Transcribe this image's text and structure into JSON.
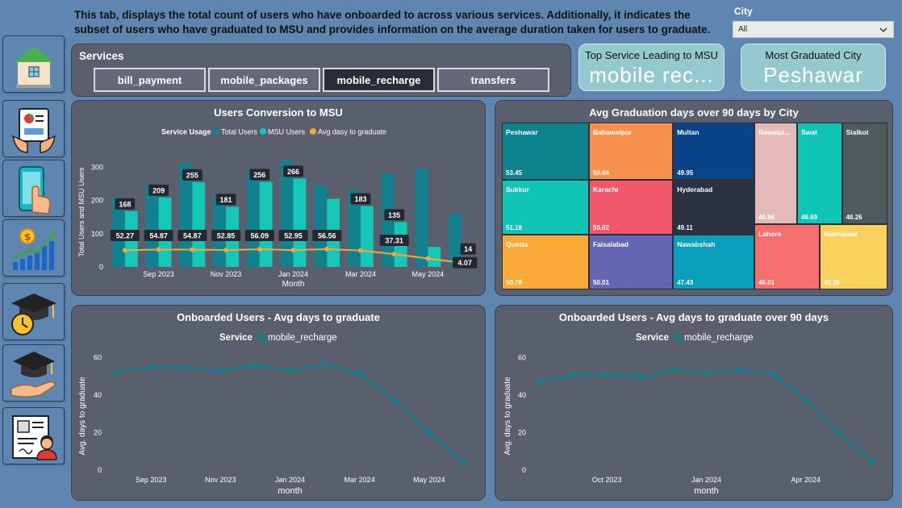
{
  "description": "This tab, displays the total count of users who have onboarded to across various services. Additionally, it indicates the subset of users who have graduated to MSU and provides information on the average duration taken for users to graduate.",
  "city_filter": {
    "label": "City",
    "value": "All"
  },
  "services": {
    "title": "Services",
    "buttons": [
      "bill_payment",
      "mobile_packages",
      "mobile_recharge",
      "transfers"
    ],
    "selected": "mobile_recharge"
  },
  "cards": {
    "top_service": {
      "title": "Top Service Leading to MSU",
      "value": "mobile rec..."
    },
    "top_city": {
      "title": "Most Graduated City",
      "value": "Peshawar"
    }
  },
  "nav_icons": [
    "home-icon",
    "report-icon",
    "mobile-tap-icon",
    "growth-icon",
    "graduation-time-icon",
    "graduation-hand-icon",
    "profile-card-icon"
  ],
  "colors": {
    "total_users": "#11818f",
    "msu_users": "#16c7b7",
    "avg_days": "#f2a838",
    "line_series": "#11808f"
  },
  "chart_data": [
    {
      "type": "bar",
      "title": "Users Conversion to MSU",
      "legend_title": "Service Usage",
      "legend_position": "top-center",
      "xlabel": "Month",
      "ylabel": "Total Users and MSU Users",
      "x_tick_labels": [
        "Sep 2023",
        "Nov 2023",
        "Jan 2024",
        "Mar 2024",
        "May 2024"
      ],
      "y_ticks": [
        0,
        100,
        200,
        300
      ],
      "ylim": [
        0,
        330
      ],
      "categories": [
        "Aug 2023",
        "Sep 2023",
        "Oct 2023",
        "Nov 2023",
        "Dec 2023",
        "Jan 2024",
        "Feb 2024",
        "Mar 2024",
        "Apr 2024",
        "May 2024",
        "Jun 2024"
      ],
      "series": [
        {
          "name": "Total Users",
          "kind": "bar",
          "values": [
            210,
            245,
            310,
            210,
            295,
            320,
            245,
            230,
            280,
            295,
            160
          ]
        },
        {
          "name": "MSU Users",
          "kind": "bar",
          "values": [
            168,
            209,
            255,
            181,
            256,
            266,
            205,
            183,
            135,
            60,
            14
          ]
        },
        {
          "name": "Avg dasy to graduate",
          "kind": "line",
          "values": [
            52.27,
            54.87,
            54.87,
            52.85,
            56.09,
            52.95,
            56.56,
            51.5,
            37.31,
            20,
            4.07
          ]
        }
      ],
      "msu_labels": [
        "168",
        "209",
        "255",
        "181",
        "256",
        "266",
        null,
        "183",
        "135",
        null,
        "14"
      ],
      "avg_labels": [
        "52.27",
        "54.87",
        "54.87",
        "52.85",
        "56.09",
        "52.95",
        "56.56",
        null,
        "37.31",
        null,
        "4.07"
      ],
      "grid": false
    },
    {
      "type": "heatmap",
      "subtype": "treemap",
      "title": "Avg Graduation days over 90 days by City",
      "cells": [
        {
          "name": "Peshawar",
          "label": "Peshawar",
          "value": "53.45",
          "color": "#0f8290"
        },
        {
          "name": "Sukkur",
          "label": "Sukkur",
          "value": "51.18",
          "color": "#11c5b6"
        },
        {
          "name": "Quetta",
          "label": "Quetta",
          "value": "50.78",
          "color": "#f9a937"
        },
        {
          "name": "Bahawalpur",
          "label": "Bahawalpur",
          "value": "50.66",
          "color": "#f78f4f"
        },
        {
          "name": "Karachi",
          "label": "Karachi",
          "value": "50.02",
          "color": "#f2576c"
        },
        {
          "name": "Faisalabad",
          "label": "Faisalabad",
          "value": "50.01",
          "color": "#6566b1"
        },
        {
          "name": "Multan",
          "label": "Multan",
          "value": "49.95",
          "color": "#0b4388"
        },
        {
          "name": "Hyderabad",
          "label": "Hyderabad",
          "value": "49.11",
          "color": "#2c3144"
        },
        {
          "name": "Nawabshah",
          "label": "Nawabshah",
          "value": "47.43",
          "color": "#0aa0bc"
        },
        {
          "name": "Rawalpindi",
          "label": "Rawalpi...",
          "value": "46.86",
          "color": "#e6b9b9"
        },
        {
          "name": "Swat",
          "label": "Swat",
          "value": "46.69",
          "color": "#11c5b6"
        },
        {
          "name": "Sialkot",
          "label": "Sialkot",
          "value": "46.26",
          "color": "#4f5a5c"
        },
        {
          "name": "Lahore",
          "label": "Lahore",
          "value": "46.01",
          "color": "#f56f6f"
        },
        {
          "name": "Islamabad",
          "label": "Islamabad",
          "value": "45.38",
          "color": "#f9d15d"
        }
      ]
    },
    {
      "type": "line",
      "title": "Onboarded Users - Avg days to graduate",
      "legend_title": "Service",
      "legend_position": "top-center",
      "xlabel": "month",
      "ylabel": "Avg. days to graduate",
      "x_tick_labels": [
        "Sep 2023",
        "Nov 2023",
        "Jan 2024",
        "Mar 2024",
        "May 2024"
      ],
      "y_ticks": [
        0,
        20,
        40,
        60
      ],
      "ylim": [
        0,
        62
      ],
      "x": [
        "Aug 2023",
        "Sep 2023",
        "Oct 2023",
        "Nov 2023",
        "Dec 2023",
        "Jan 2024",
        "Feb 2024",
        "Mar 2024",
        "Apr 2024",
        "May 2024",
        "Jun 2024"
      ],
      "series": [
        {
          "name": "mobile_recharge",
          "values": [
            52.3,
            54.9,
            54.9,
            52.9,
            56.1,
            53.0,
            56.6,
            51.5,
            37.3,
            20.0,
            4.1
          ]
        }
      ],
      "grid": false
    },
    {
      "type": "line",
      "title": "Onboarded Users - Avg days to graduate over 90 days",
      "legend_title": "Service",
      "legend_position": "top-center",
      "xlabel": "month",
      "ylabel": "Avg. days to graduate",
      "x_tick_labels": [
        "Oct 2023",
        "Jan 2024",
        "Apr 2024"
      ],
      "y_ticks": [
        0,
        20,
        40,
        60
      ],
      "ylim": [
        0,
        62
      ],
      "x": [
        "Aug 2023",
        "Sep 2023",
        "Oct 2023",
        "Nov 2023",
        "Dec 2023",
        "Jan 2024",
        "Feb 2024",
        "Mar 2024",
        "Apr 2024",
        "May 2024",
        "Jun 2024"
      ],
      "series": [
        {
          "name": "mobile_recharge",
          "values": [
            47.5,
            50.9,
            51.1,
            49.9,
            53.5,
            51.8,
            53.6,
            51.2,
            37.3,
            20.0,
            4.1
          ]
        }
      ],
      "grid": false
    }
  ]
}
